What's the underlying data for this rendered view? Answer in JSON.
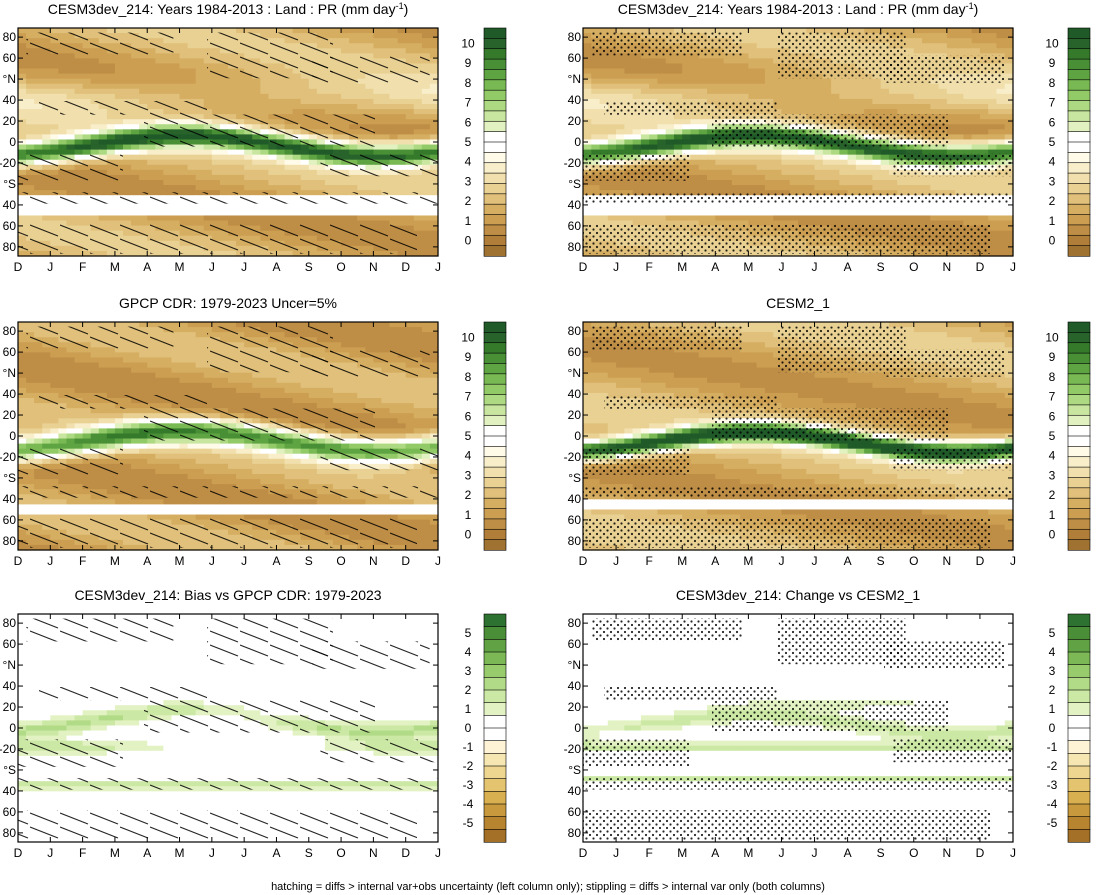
{
  "footer": "hatching = diffs > internal var+obs uncertainty (left column only); stippling = diffs > internal var only (both columns)",
  "colors": {
    "abs": [
      "#9f7232",
      "#b07e39",
      "#bf8e46",
      "#cc9e52",
      "#d6ae62",
      "#e0c07a",
      "#e9d193",
      "#f1e0ad",
      "#f8eeca",
      "#fffbe8",
      "#ffffff",
      "#ffffff",
      "#e2f1c0",
      "#c8e6a0",
      "#acd981",
      "#93ca68",
      "#79b953",
      "#5fa442",
      "#488f35",
      "#357a2b",
      "#27632a",
      "#1f5a28"
    ],
    "diff": [
      "#a46f27",
      "#b7842f",
      "#c99a3d",
      "#d8b04f",
      "#e4c46f",
      "#eed690",
      "#f5e6b2",
      "#fff3d6",
      "#ffffff",
      "#ffffff",
      "#e3f2c3",
      "#cbe8a4",
      "#b1db86",
      "#97cb6b",
      "#7cb856",
      "#61a344",
      "#4a8f37",
      "#2e7231"
    ]
  },
  "chart_data": [
    {
      "panel": "top-left",
      "type": "heatmap",
      "title": "CESM3dev_214: Years 1984-2013 : Land : PR (mm day",
      "title_sup": "-1",
      "title_close": ")",
      "field": "base_pr",
      "months": [
        "D",
        "J",
        "F",
        "M",
        "A",
        "M",
        "J",
        "J",
        "A",
        "S",
        "O",
        "N",
        "D",
        "J"
      ],
      "lat_ticks": [
        "80",
        "60",
        "°N",
        "40",
        "20",
        "0",
        "-20",
        "°S",
        "40",
        "60",
        "80"
      ],
      "cbar_labels": [
        "10",
        "9",
        "8",
        "7",
        "6",
        "5",
        "4",
        "3",
        "2",
        "1",
        "0"
      ],
      "overlay": "hatch"
    },
    {
      "panel": "top-right",
      "type": "heatmap",
      "title": "CESM3dev_214: Years 1984-2013 : Land : PR (mm day",
      "title_sup": "-1",
      "title_close": ")",
      "field": "base_pr",
      "months": [
        "D",
        "J",
        "F",
        "M",
        "A",
        "M",
        "J",
        "J",
        "A",
        "S",
        "O",
        "N",
        "D",
        "J"
      ],
      "lat_ticks": [
        "80",
        "60",
        "°N",
        "40",
        "20",
        "0",
        "-20",
        "°S",
        "40",
        "60",
        "80"
      ],
      "cbar_labels": [
        "10",
        "9",
        "8",
        "7",
        "6",
        "5",
        "4",
        "3",
        "2",
        "1",
        "0"
      ],
      "overlay": "stipple"
    },
    {
      "panel": "mid-left",
      "type": "heatmap",
      "title": "GPCP CDR: 1979-2023 Uncer=5%",
      "title_sup": "",
      "title_close": "",
      "field": "obs_pr",
      "months": [
        "D",
        "J",
        "F",
        "M",
        "A",
        "M",
        "J",
        "J",
        "A",
        "S",
        "O",
        "N",
        "D",
        "J"
      ],
      "lat_ticks": [
        "80",
        "60",
        "°N",
        "40",
        "20",
        "0",
        "-20",
        "°S",
        "40",
        "60",
        "80"
      ],
      "cbar_labels": [
        "10",
        "9",
        "8",
        "7",
        "6",
        "5",
        "4",
        "3",
        "2",
        "1",
        "0"
      ],
      "overlay": "hatch"
    },
    {
      "panel": "mid-right",
      "type": "heatmap",
      "title": "CESM2_1",
      "title_sup": "",
      "title_close": "",
      "field": "cesm2_pr",
      "months": [
        "D",
        "J",
        "F",
        "M",
        "A",
        "M",
        "J",
        "J",
        "A",
        "S",
        "O",
        "N",
        "D",
        "J"
      ],
      "lat_ticks": [
        "80",
        "60",
        "°N",
        "40",
        "20",
        "0",
        "-20",
        "°S",
        "40",
        "60",
        "80"
      ],
      "cbar_labels": [
        "10",
        "9",
        "8",
        "7",
        "6",
        "5",
        "4",
        "3",
        "2",
        "1",
        "0"
      ],
      "overlay": "stipple"
    },
    {
      "panel": "bottom-left",
      "type": "heatmap",
      "title": "CESM3dev_214: Bias vs GPCP CDR: 1979-2023",
      "title_sup": "",
      "title_close": "",
      "field": "bias",
      "months": [
        "D",
        "J",
        "F",
        "M",
        "A",
        "M",
        "J",
        "J",
        "A",
        "S",
        "O",
        "N",
        "D",
        "J"
      ],
      "lat_ticks": [
        "80",
        "60",
        "°N",
        "40",
        "20",
        "0",
        "-20",
        "°S",
        "40",
        "60",
        "80"
      ],
      "cbar_labels": [
        "5",
        "4",
        "3",
        "2",
        "1",
        "0",
        "-1",
        "-2",
        "-3",
        "-4",
        "-5"
      ],
      "overlay": "hatch"
    },
    {
      "panel": "bottom-right",
      "type": "heatmap",
      "title": "CESM3dev_214: Change vs CESM2_1",
      "title_sup": "",
      "title_close": "",
      "field": "change",
      "months": [
        "D",
        "J",
        "F",
        "M",
        "A",
        "M",
        "J",
        "J",
        "A",
        "S",
        "O",
        "N",
        "D",
        "J"
      ],
      "lat_ticks": [
        "80",
        "60",
        "°N",
        "40",
        "20",
        "0",
        "-20",
        "°S",
        "40",
        "60",
        "80"
      ],
      "cbar_labels": [
        "5",
        "4",
        "3",
        "2",
        "1",
        "0",
        "-1",
        "-2",
        "-3",
        "-4",
        "-5"
      ],
      "overlay": "stipple"
    }
  ]
}
